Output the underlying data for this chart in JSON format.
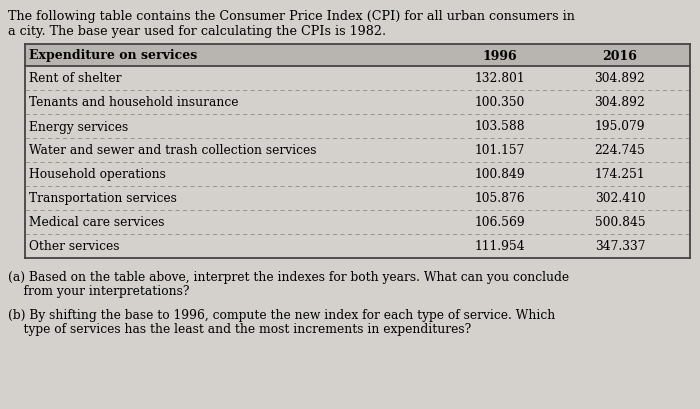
{
  "intro_line1": "The following table contains the Consumer Price Index (CPI) for all urban consumers in",
  "intro_line2": "a city. The base year used for calculating the CPIs is 1982.",
  "header": [
    "Expenditure on services",
    "1996",
    "2016"
  ],
  "rows": [
    [
      "Rent of shelter",
      "132.801",
      "304.892"
    ],
    [
      "Tenants and household insurance",
      "100.350",
      "304.892"
    ],
    [
      "Energy services",
      "103.588",
      "195.079"
    ],
    [
      "Water and sewer and trash collection services",
      "101.157",
      "224.745"
    ],
    [
      "Household operations",
      "100.849",
      "174.251"
    ],
    [
      "Transportation services",
      "105.876",
      "302.410"
    ],
    [
      "Medical care services",
      "106.569",
      "500.845"
    ],
    [
      "Other services",
      "111.954",
      "347.337"
    ]
  ],
  "question_a_line1": "(a) Based on the table above, interpret the indexes for both years. What can you conclude",
  "question_a_line2": "    from your interpretations?",
  "question_b_line1": "(b) By shifting the base to 1996, compute the new index for each type of service. Which",
  "question_b_line2": "    type of services has the least and the most increments in expenditures?",
  "bg_color": "#d4d0cc",
  "header_bg": "#b8b4b0",
  "border_color": "#444444",
  "font_size_intro": 9.2,
  "font_size_header": 9.0,
  "font_size_row": 8.8,
  "font_size_question": 8.8
}
